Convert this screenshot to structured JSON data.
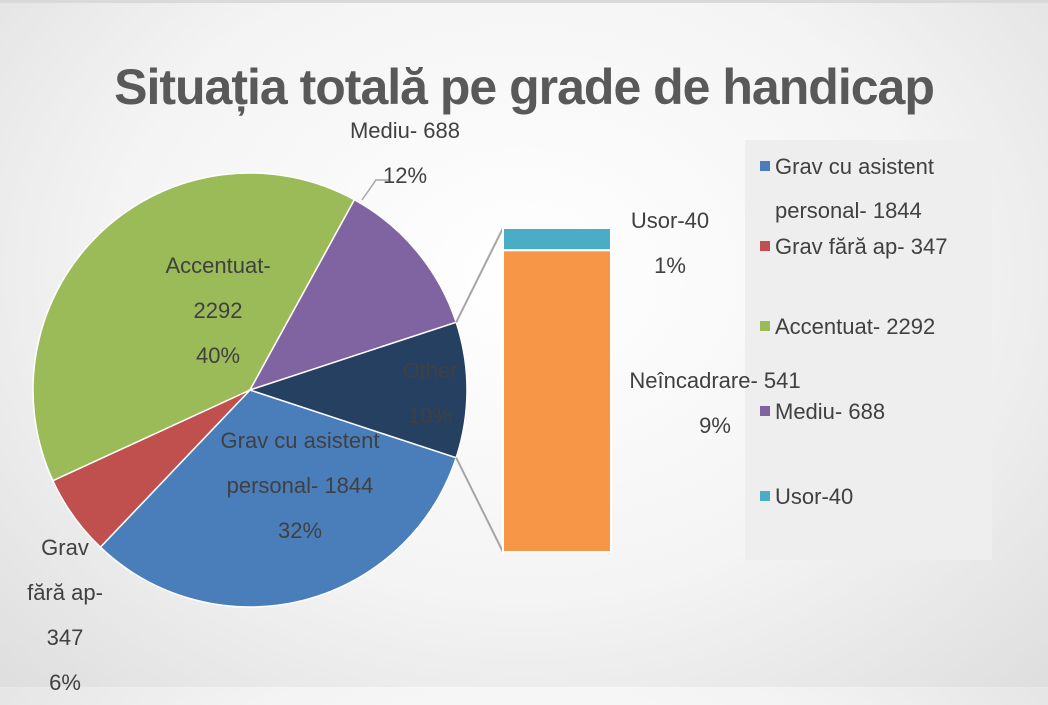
{
  "chart_data": {
    "type": "pie-of-bar",
    "title": "Situația totală pe grade de handicap",
    "categories": [
      "Grav cu asistent personal- 1844",
      "Grav fără ap- 347",
      "Accentuat- 2292",
      "Mediu- 688",
      "Usor-40",
      "Neîncadrare- 541"
    ],
    "values": [
      1844,
      347,
      2292,
      688,
      40,
      541
    ],
    "percent_labels": [
      "32%",
      "6%",
      "40%",
      "12%",
      "1%",
      "9%"
    ],
    "colors": [
      "#4a7ebb",
      "#c0504d",
      "#9bbb59",
      "#8064a2",
      "#4bacc6",
      "#f79646"
    ],
    "group": [
      "pie",
      "pie",
      "pie",
      "pie",
      "bar",
      "bar"
    ],
    "in_legend": [
      true,
      true,
      true,
      true,
      true,
      false
    ],
    "other_label": "Other",
    "other_percent_label": "10%",
    "other_color": "#254061"
  }
}
